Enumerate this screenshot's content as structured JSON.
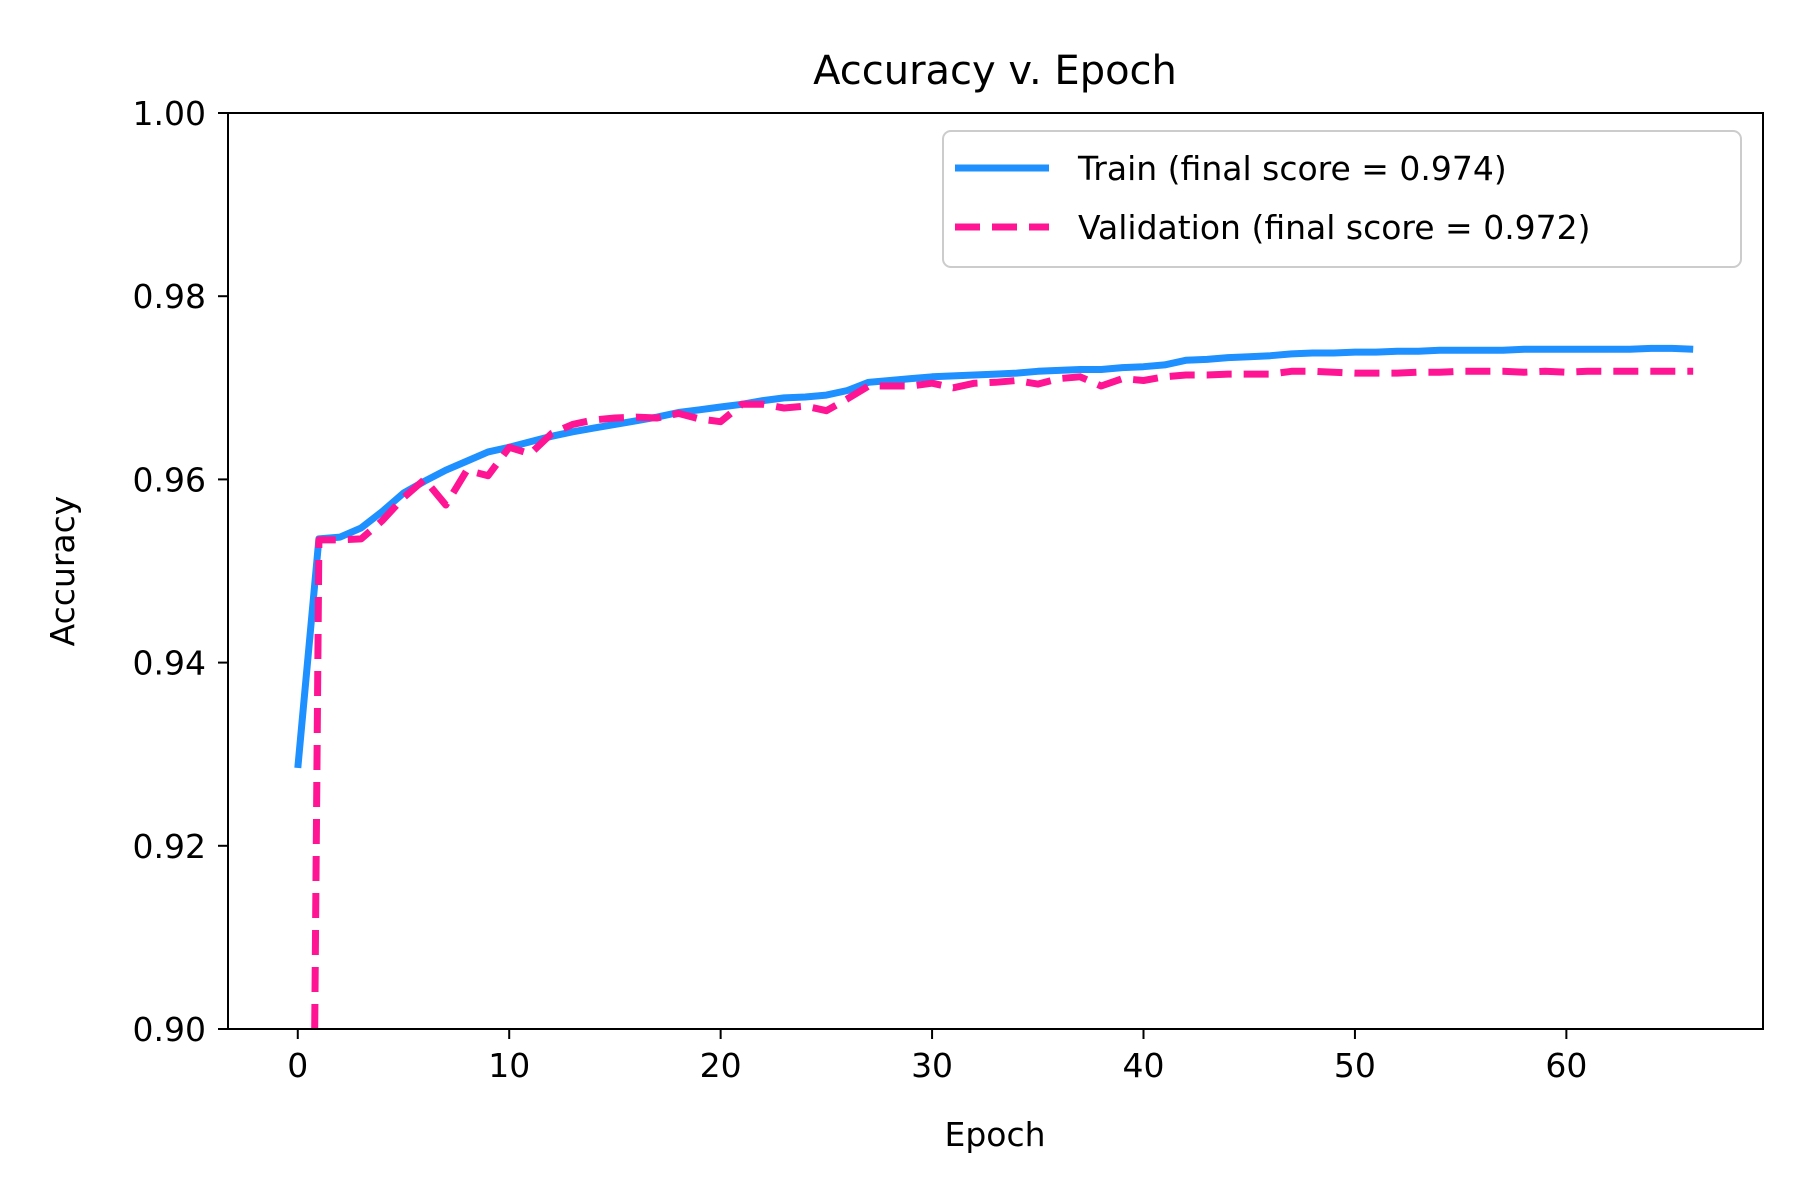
{
  "chart_data": {
    "type": "line",
    "title": "Accuracy v. Epoch",
    "xlabel": "Epoch",
    "ylabel": "Accuracy",
    "xlim": [
      -3.3,
      69.3
    ],
    "ylim": [
      0.9,
      1.0
    ],
    "xticks": [
      0,
      10,
      20,
      30,
      40,
      50,
      60
    ],
    "xtick_labels": [
      "0",
      "10",
      "20",
      "30",
      "40",
      "50",
      "60"
    ],
    "yticks": [
      0.9,
      0.92,
      0.94,
      0.96,
      0.98,
      1.0
    ],
    "ytick_labels": [
      "0.90",
      "0.92",
      "0.94",
      "0.96",
      "0.98",
      "1.00"
    ],
    "grid": false,
    "legend_position": "top-right",
    "series": [
      {
        "name": "Train (final score = 0.974)",
        "color": "#1E90FF",
        "style": "solid",
        "x": [
          0,
          1,
          2,
          3,
          4,
          5,
          6,
          7,
          8,
          9,
          10,
          11,
          12,
          13,
          14,
          15,
          16,
          17,
          18,
          19,
          20,
          21,
          22,
          23,
          24,
          25,
          26,
          27,
          28,
          29,
          30,
          31,
          32,
          33,
          34,
          35,
          36,
          37,
          38,
          39,
          40,
          41,
          42,
          43,
          44,
          45,
          46,
          47,
          48,
          49,
          50,
          51,
          52,
          53,
          54,
          55,
          56,
          57,
          58,
          59,
          60,
          61,
          62,
          63,
          64,
          65,
          66
        ],
        "values": [
          0.9285,
          0.9535,
          0.9537,
          0.9547,
          0.9565,
          0.9585,
          0.9598,
          0.961,
          0.962,
          0.963,
          0.9635,
          0.9641,
          0.9647,
          0.9652,
          0.9656,
          0.966,
          0.9664,
          0.9668,
          0.9673,
          0.9676,
          0.9679,
          0.9682,
          0.9686,
          0.9689,
          0.969,
          0.9692,
          0.9697,
          0.9706,
          0.9708,
          0.971,
          0.9712,
          0.9713,
          0.9714,
          0.9715,
          0.9716,
          0.9718,
          0.9719,
          0.972,
          0.972,
          0.9722,
          0.9723,
          0.9725,
          0.973,
          0.9731,
          0.9733,
          0.9734,
          0.9735,
          0.9737,
          0.9738,
          0.9738,
          0.9739,
          0.9739,
          0.974,
          0.974,
          0.9741,
          0.9741,
          0.9741,
          0.9741,
          0.9742,
          0.9742,
          0.9742,
          0.9742,
          0.9742,
          0.9742,
          0.9743,
          0.9743,
          0.9742
        ]
      },
      {
        "name": "Validation (final score = 0.972)",
        "color": "#FF1493",
        "style": "dashed",
        "x": [
          0.8,
          1,
          2,
          3,
          4,
          5,
          6,
          7,
          8,
          9,
          10,
          11,
          12,
          13,
          14,
          15,
          16,
          17,
          18,
          19,
          20,
          21,
          22,
          23,
          24,
          25,
          26,
          27,
          28,
          29,
          30,
          31,
          32,
          33,
          34,
          35,
          36,
          37,
          38,
          39,
          40,
          41,
          42,
          43,
          44,
          45,
          46,
          47,
          48,
          49,
          50,
          51,
          52,
          53,
          54,
          55,
          56,
          57,
          58,
          59,
          60,
          61,
          62,
          63,
          64,
          65,
          66
        ],
        "values": [
          0.9,
          0.9534,
          0.9534,
          0.9535,
          0.9555,
          0.958,
          0.96,
          0.9572,
          0.961,
          0.9604,
          0.9635,
          0.9628,
          0.965,
          0.966,
          0.9665,
          0.9667,
          0.9668,
          0.9667,
          0.9672,
          0.9666,
          0.9663,
          0.9682,
          0.9682,
          0.9678,
          0.968,
          0.9675,
          0.9688,
          0.9702,
          0.9702,
          0.9702,
          0.9705,
          0.97,
          0.9705,
          0.9706,
          0.9708,
          0.9704,
          0.971,
          0.9712,
          0.9702,
          0.971,
          0.9708,
          0.9712,
          0.9714,
          0.9714,
          0.9715,
          0.9715,
          0.9715,
          0.9718,
          0.9718,
          0.9717,
          0.9716,
          0.9716,
          0.9716,
          0.9717,
          0.9717,
          0.9718,
          0.9718,
          0.9718,
          0.9717,
          0.9718,
          0.9717,
          0.9718,
          0.9718,
          0.9718,
          0.9718,
          0.9718,
          0.9718
        ]
      }
    ]
  }
}
